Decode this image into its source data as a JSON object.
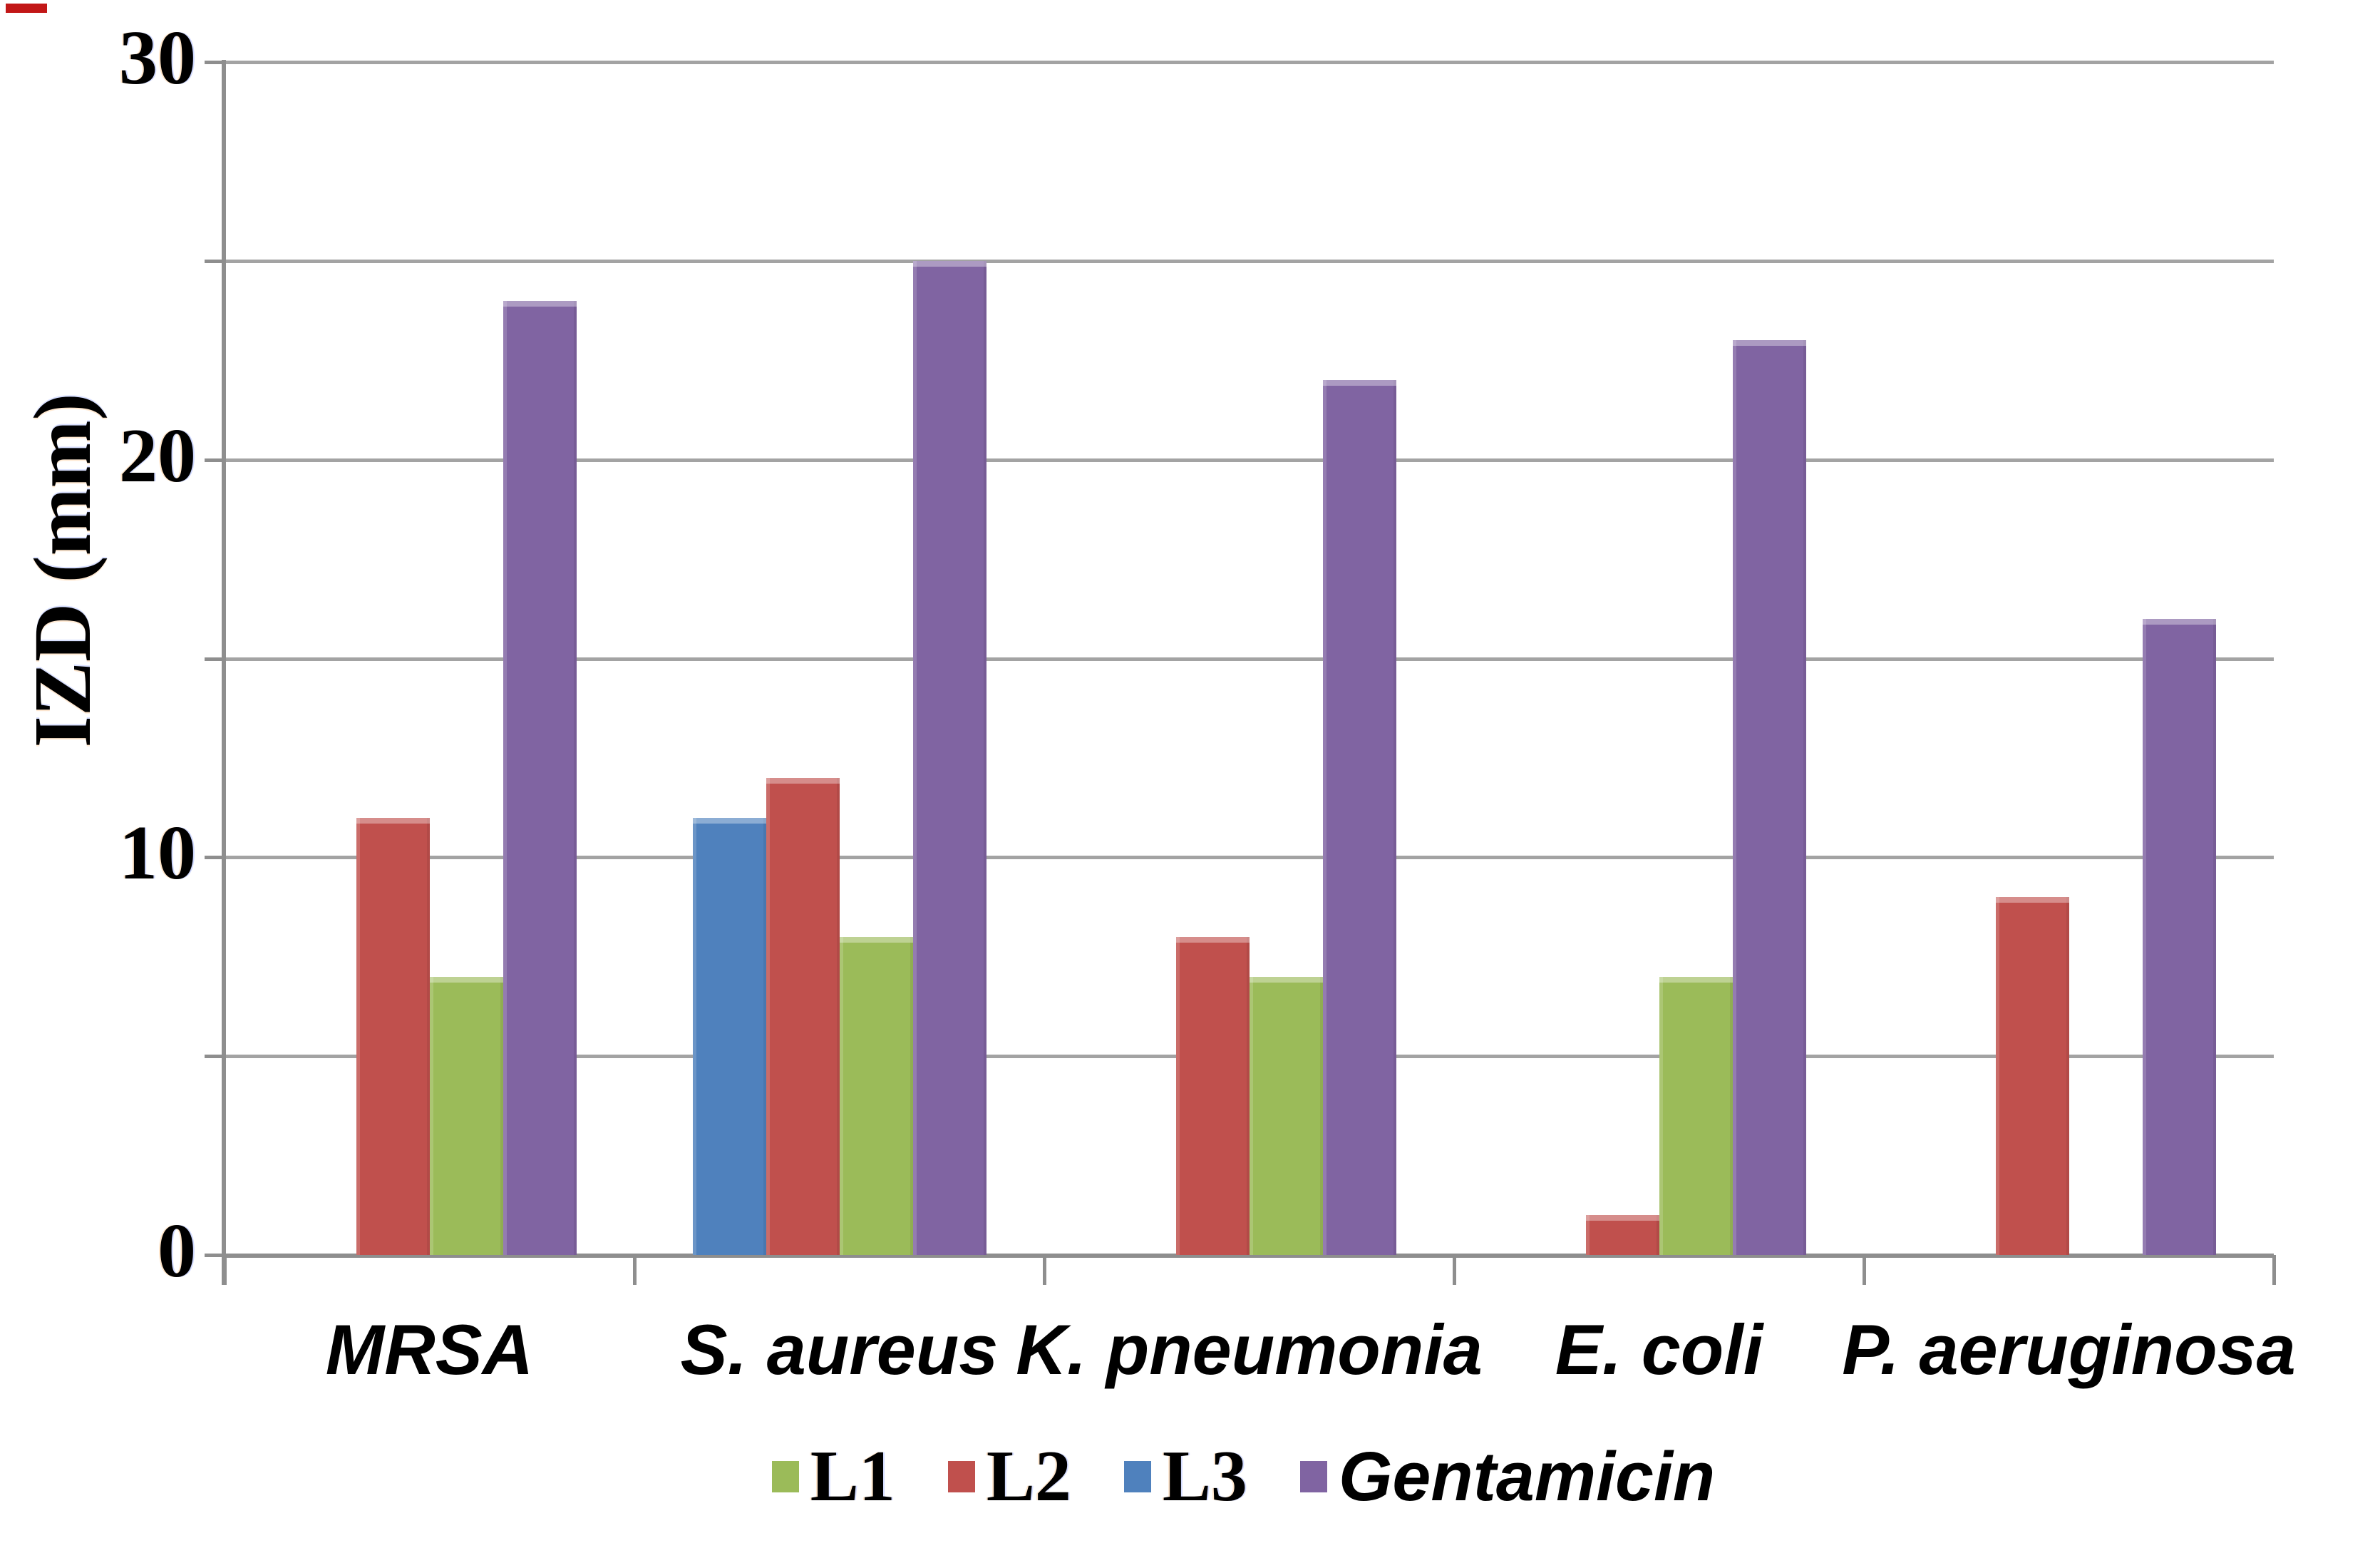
{
  "corner_mark": {
    "color": "#c21717"
  },
  "chart_data": {
    "type": "bar",
    "title": "",
    "xlabel": "",
    "ylabel": "IZD (mm)",
    "ylim": [
      0,
      30
    ],
    "y_tick_labels": [
      "0",
      "10",
      "20",
      "30"
    ],
    "y_tick_values": [
      0,
      10,
      20,
      30
    ],
    "gridline_step": 5,
    "grid": true,
    "legend_position": "bottom",
    "axis_color": "#8e8e8e",
    "gridline_color": "#a3a3a3",
    "categories": [
      "MRSA",
      "S. aureus",
      "K. pneumonia",
      "E. coli",
      "P. aeruginosa"
    ],
    "series": [
      {
        "name": "L1",
        "color": "#9BBB59",
        "values": [
          7,
          8,
          7,
          7,
          0
        ]
      },
      {
        "name": "L2",
        "color": "#C0504D",
        "values": [
          11,
          12,
          8,
          1,
          9
        ]
      },
      {
        "name": "L3",
        "color": "#4F81BD",
        "values": [
          0,
          11,
          0,
          0,
          0
        ]
      },
      {
        "name": "Gentamicin",
        "color": "#8064A2",
        "values": [
          24,
          25,
          22,
          23,
          16
        ]
      }
    ],
    "bar_plot_order": [
      "L3",
      "L2",
      "L1",
      "Gentamicin"
    ]
  }
}
